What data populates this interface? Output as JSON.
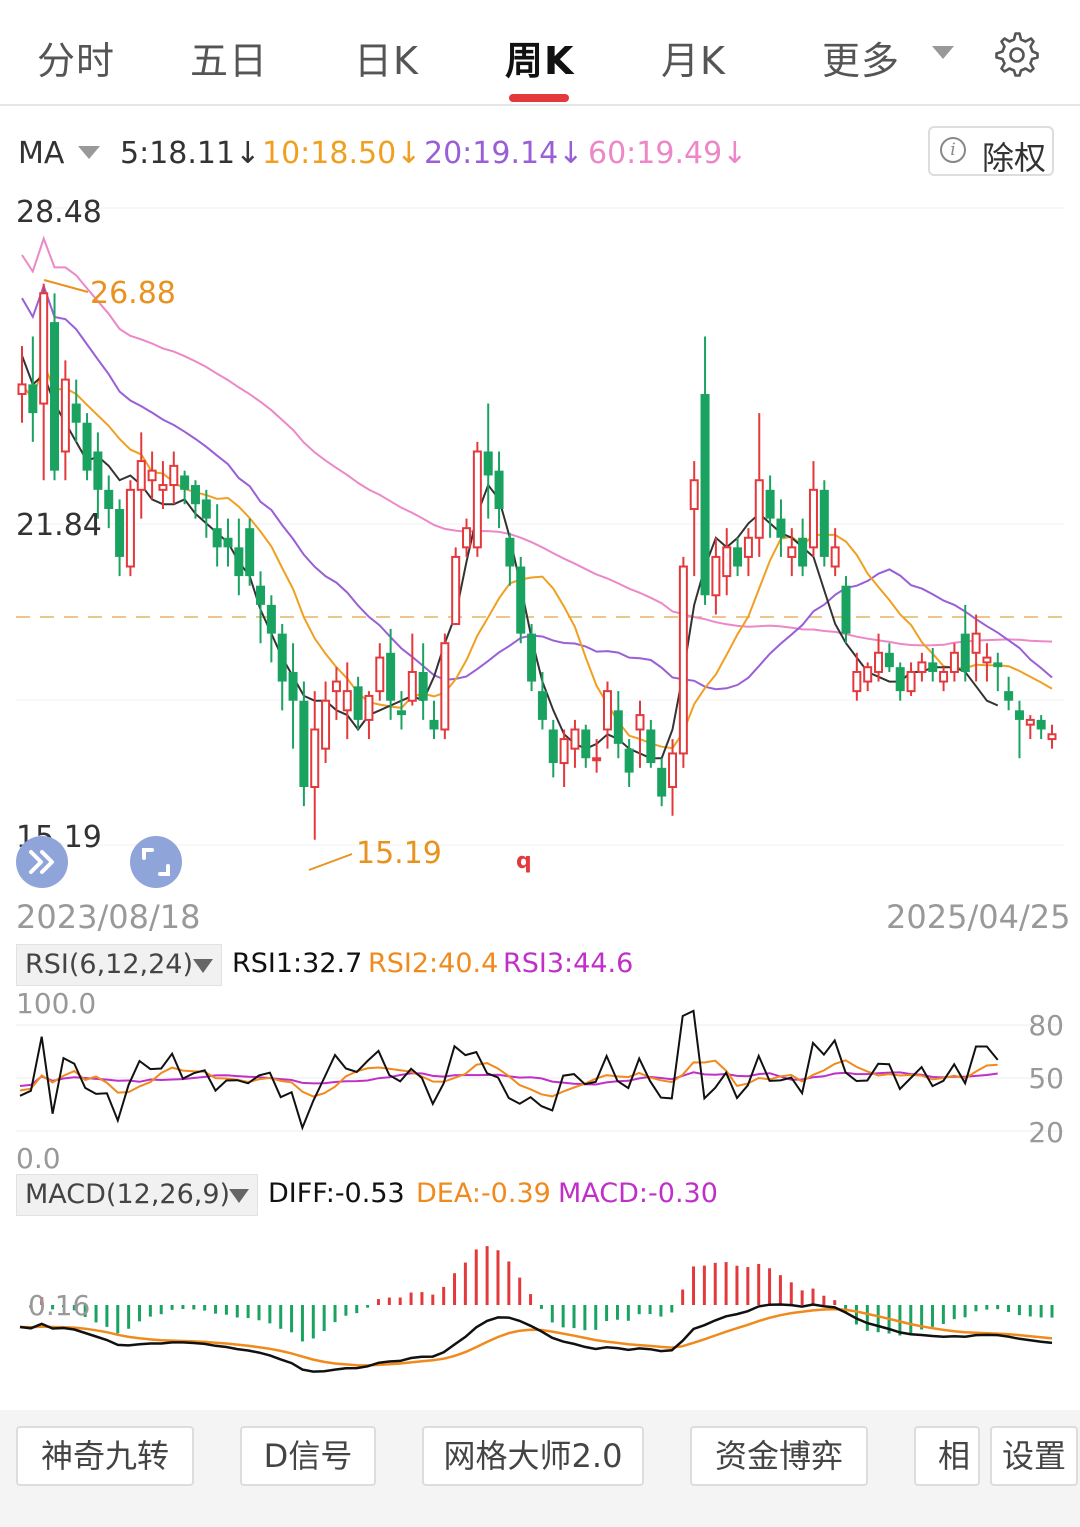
{
  "tabs": {
    "items": [
      "分时",
      "五日",
      "日K",
      "周K",
      "月K",
      "更多"
    ],
    "active": "周K"
  },
  "ma": {
    "label": "MA",
    "values": [
      {
        "text": "5:18.11↓",
        "color": "#333333"
      },
      {
        "text": "10:18.50↓",
        "color": "#f0a020"
      },
      {
        "text": "20:19.14↓",
        "color": "#9a5fd6"
      },
      {
        "text": "60:19.49↓",
        "color": "#ec87c8"
      }
    ],
    "arrow_color": "#1aa260"
  },
  "adjust_button": {
    "label": "除权",
    "icon": "info-icon"
  },
  "main_chart": {
    "y_labels": [
      "28.48",
      "21.84",
      "15.19"
    ],
    "high_annotation": "26.88",
    "low_annotation": "15.19",
    "marker": "q",
    "date_start": "2023/08/18",
    "date_end": "2025/04/25"
  },
  "rsi": {
    "selector": "RSI(6,12,24)",
    "values": [
      {
        "text": "RSI1:32.7",
        "color": "#111111"
      },
      {
        "text": "RSI2:40.4",
        "color": "#f08a1c"
      },
      {
        "text": "RSI3:44.6",
        "color": "#c030c8"
      }
    ],
    "top_label": "100.0",
    "bottom_label": "0.0",
    "right_labels": [
      "80",
      "50",
      "20"
    ]
  },
  "macd": {
    "selector": "MACD(12,26,9)",
    "values": [
      {
        "text": "DIFF:-0.53",
        "color": "#111111"
      },
      {
        "text": "DEA:-0.39",
        "color": "#f08a1c"
      },
      {
        "text": "MACD:-0.30",
        "color": "#c030c8"
      }
    ],
    "axis_label": "0.16"
  },
  "bottom_buttons": [
    "神奇九转",
    "D信号",
    "网格大师2.0",
    "资金博弈",
    "相",
    "设置"
  ],
  "colors": {
    "up": "#e4393c",
    "down": "#1aa260",
    "accent": "#e4393c"
  },
  "chart_data": [
    {
      "type": "candlestick",
      "ylim": [
        15.19,
        28.48
      ],
      "x_start": "2023/08/18",
      "x_end": "2025/04/25",
      "ohlc": [
        [
          24.6,
          25.6,
          24.0,
          24.8
        ],
        [
          24.8,
          25.8,
          23.6,
          24.2
        ],
        [
          24.4,
          26.9,
          22.8,
          26.7
        ],
        [
          26.1,
          26.7,
          22.8,
          23.0
        ],
        [
          23.4,
          25.3,
          22.8,
          24.9
        ],
        [
          24.4,
          24.9,
          23.6,
          24.0
        ],
        [
          24.0,
          24.2,
          22.8,
          23.0
        ],
        [
          23.4,
          23.8,
          22.0,
          22.6
        ],
        [
          22.6,
          22.9,
          21.8,
          22.2
        ],
        [
          22.2,
          22.4,
          20.8,
          21.2
        ],
        [
          21.0,
          22.8,
          20.8,
          22.6
        ],
        [
          22.6,
          23.8,
          22.0,
          23.2
        ],
        [
          22.8,
          23.4,
          22.4,
          23.0
        ],
        [
          22.6,
          23.2,
          22.2,
          22.7
        ],
        [
          22.7,
          23.4,
          22.3,
          23.1
        ],
        [
          22.9,
          23.0,
          22.3,
          22.6
        ],
        [
          22.7,
          22.8,
          22.0,
          22.3
        ],
        [
          22.4,
          22.6,
          21.6,
          22.0
        ],
        [
          21.8,
          22.3,
          21.0,
          21.4
        ],
        [
          21.6,
          22.0,
          21.0,
          21.4
        ],
        [
          21.4,
          22.0,
          20.4,
          20.8
        ],
        [
          21.8,
          22.0,
          20.6,
          20.8
        ],
        [
          20.6,
          20.9,
          19.4,
          20.2
        ],
        [
          20.2,
          20.4,
          19.0,
          19.6
        ],
        [
          19.6,
          19.8,
          18.0,
          18.6
        ],
        [
          18.8,
          19.4,
          17.2,
          18.2
        ],
        [
          18.2,
          18.6,
          16.0,
          16.4
        ],
        [
          16.4,
          18.4,
          15.3,
          17.6
        ],
        [
          17.2,
          18.6,
          16.9,
          18.2
        ],
        [
          18.4,
          18.9,
          17.8,
          18.6
        ],
        [
          18.0,
          19.0,
          17.4,
          18.4
        ],
        [
          18.5,
          18.7,
          17.6,
          17.8
        ],
        [
          17.8,
          18.4,
          17.4,
          18.3
        ],
        [
          18.4,
          19.4,
          18.2,
          19.1
        ],
        [
          19.2,
          19.7,
          17.8,
          18.2
        ],
        [
          18.0,
          18.4,
          17.6,
          17.9
        ],
        [
          18.2,
          19.6,
          18.1,
          18.8
        ],
        [
          18.8,
          19.4,
          17.8,
          18.2
        ],
        [
          17.8,
          18.2,
          17.4,
          17.6
        ],
        [
          17.6,
          19.6,
          17.4,
          19.4
        ],
        [
          19.8,
          21.4,
          19.8,
          21.2
        ],
        [
          21.4,
          22.0,
          21.2,
          21.8
        ],
        [
          21.4,
          23.6,
          21.2,
          23.4
        ],
        [
          23.4,
          24.4,
          22.0,
          22.9
        ],
        [
          23.0,
          23.4,
          21.8,
          22.2
        ],
        [
          21.6,
          21.7,
          20.6,
          21.0
        ],
        [
          21.0,
          21.2,
          19.4,
          19.6
        ],
        [
          19.6,
          19.8,
          18.4,
          18.6
        ],
        [
          18.4,
          18.8,
          17.6,
          17.8
        ],
        [
          17.6,
          17.8,
          16.6,
          16.9
        ],
        [
          16.9,
          17.6,
          16.4,
          17.4
        ],
        [
          17.2,
          17.8,
          16.8,
          17.6
        ],
        [
          17.6,
          17.7,
          16.8,
          17.0
        ],
        [
          17.0,
          17.4,
          16.7,
          17.0
        ],
        [
          17.6,
          18.6,
          17.2,
          18.4
        ],
        [
          18.0,
          18.4,
          17.0,
          17.3
        ],
        [
          17.2,
          17.4,
          16.4,
          16.7
        ],
        [
          17.6,
          18.2,
          16.8,
          17.9
        ],
        [
          17.6,
          17.8,
          16.8,
          16.9
        ],
        [
          16.8,
          17.0,
          16.0,
          16.2
        ],
        [
          16.4,
          17.4,
          15.8,
          17.1
        ],
        [
          17.1,
          21.2,
          16.8,
          21.0
        ],
        [
          22.2,
          23.2,
          20.8,
          22.8
        ],
        [
          24.6,
          25.8,
          20.2,
          20.4
        ],
        [
          20.4,
          21.6,
          20.0,
          21.2
        ],
        [
          20.8,
          21.8,
          20.4,
          21.4
        ],
        [
          21.4,
          21.6,
          20.8,
          21.0
        ],
        [
          21.2,
          21.8,
          20.8,
          21.6
        ],
        [
          21.6,
          24.2,
          21.2,
          22.8
        ],
        [
          22.6,
          22.9,
          21.6,
          22.0
        ],
        [
          22.0,
          22.4,
          21.2,
          21.6
        ],
        [
          21.2,
          21.8,
          20.8,
          21.4
        ],
        [
          21.6,
          22.0,
          20.8,
          21.0
        ],
        [
          21.4,
          23.2,
          21.2,
          22.6
        ],
        [
          22.6,
          22.8,
          21.0,
          21.2
        ],
        [
          21.0,
          21.8,
          20.8,
          21.4
        ],
        [
          20.6,
          20.8,
          19.4,
          19.6
        ],
        [
          18.4,
          19.2,
          18.2,
          18.8
        ],
        [
          18.6,
          19.0,
          18.4,
          18.9
        ],
        [
          18.8,
          19.6,
          18.6,
          19.2
        ],
        [
          19.2,
          19.4,
          18.8,
          18.9
        ],
        [
          18.9,
          19.0,
          18.2,
          18.4
        ],
        [
          18.4,
          19.0,
          18.3,
          18.8
        ],
        [
          18.8,
          19.2,
          18.6,
          19.0
        ],
        [
          19.0,
          19.3,
          18.6,
          18.8
        ],
        [
          18.6,
          18.9,
          18.4,
          18.8
        ],
        [
          18.8,
          19.4,
          18.6,
          19.2
        ],
        [
          19.6,
          20.2,
          18.6,
          18.8
        ],
        [
          19.2,
          20.0,
          18.6,
          19.6
        ],
        [
          19.0,
          19.4,
          18.6,
          19.1
        ],
        [
          19.0,
          19.2,
          18.4,
          18.9
        ],
        [
          18.4,
          18.7,
          18.0,
          18.2
        ],
        [
          18.0,
          18.2,
          17.0,
          17.8
        ],
        [
          17.7,
          17.9,
          17.4,
          17.8
        ],
        [
          17.8,
          17.9,
          17.4,
          17.6
        ],
        [
          17.4,
          17.7,
          17.2,
          17.5
        ]
      ],
      "ma5": [
        25.4,
        24.8,
        25.0,
        24.4,
        24.0,
        23.6,
        23.2,
        23.3,
        23.1,
        22.8,
        22.9,
        22.7,
        22.4,
        22.3,
        22.3,
        22.4,
        22.1,
        21.9,
        21.7,
        21.5,
        21.1,
        20.8,
        20.1,
        19.6,
        19.1,
        18.7,
        18.3,
        18.2,
        18.2,
        18.0,
        17.9,
        17.6,
        17.9,
        18.0,
        18.1,
        18.2,
        18.3,
        18.2,
        18.7,
        19.4,
        20.0,
        21.1,
        22.1,
        22.7,
        22.4,
        21.6,
        20.6,
        19.5,
        18.6,
        18.0,
        17.5,
        17.3,
        17.2,
        17.3,
        17.5,
        17.4,
        17.2,
        17.1,
        17.0,
        17.0,
        17.6,
        18.8,
        20.2,
        21.0,
        21.6,
        21.4,
        21.6,
        21.9,
        22.1,
        21.9,
        21.7,
        21.6,
        21.4,
        21.2,
        20.5,
        19.8,
        19.4,
        19.1,
        18.8,
        18.7,
        18.6,
        18.6,
        18.8,
        18.8,
        18.9,
        18.9,
        18.9,
        18.8,
        18.5,
        18.2,
        18.1
      ]
    }
  ]
}
